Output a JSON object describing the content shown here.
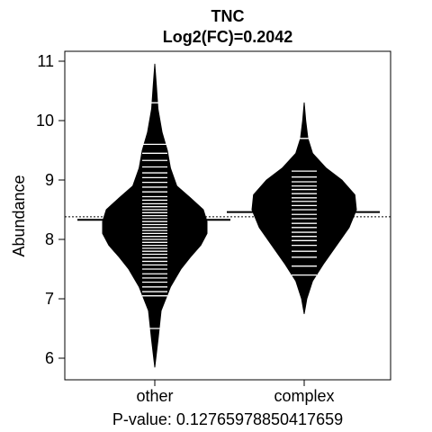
{
  "chart_data": {
    "type": "beanplot",
    "title": "TNC",
    "subtitle": "Log2(FC)=0.2042",
    "ylabel": "Abundance",
    "xlabel": "P-value: 0.12765978850417659",
    "categories": [
      "other",
      "complex"
    ],
    "ylim": [
      5.7,
      11.2
    ],
    "yticks": [
      6,
      7,
      8,
      9,
      10,
      11
    ],
    "overall_mean": 8.38,
    "grid": false,
    "legend": "none",
    "groups": [
      {
        "name": "other",
        "mean": 8.33,
        "range": [
          5.85,
          10.95
        ],
        "density": [
          [
            5.85,
            0.0
          ],
          [
            6.3,
            0.06
          ],
          [
            6.8,
            0.12
          ],
          [
            7.2,
            0.3
          ],
          [
            7.5,
            0.5
          ],
          [
            7.7,
            0.68
          ],
          [
            7.9,
            0.88
          ],
          [
            8.1,
            1.0
          ],
          [
            8.3,
            1.0
          ],
          [
            8.5,
            0.93
          ],
          [
            8.7,
            0.68
          ],
          [
            8.9,
            0.42
          ],
          [
            9.2,
            0.3
          ],
          [
            9.5,
            0.24
          ],
          [
            9.8,
            0.14
          ],
          [
            10.2,
            0.06
          ],
          [
            10.6,
            0.03
          ],
          [
            10.95,
            0.0
          ]
        ],
        "observations": [
          6.5,
          7.05,
          7.12,
          7.2,
          7.28,
          7.35,
          7.42,
          7.5,
          7.57,
          7.63,
          7.69,
          7.75,
          7.8,
          7.85,
          7.9,
          7.95,
          8.0,
          8.05,
          8.1,
          8.15,
          8.2,
          8.25,
          8.3,
          8.35,
          8.4,
          8.45,
          8.5,
          8.55,
          8.6,
          8.66,
          8.72,
          8.8,
          8.88,
          8.96,
          9.04,
          9.12,
          9.22,
          9.33,
          9.45,
          9.6,
          10.3
        ]
      },
      {
        "name": "complex",
        "mean": 8.46,
        "range": [
          6.75,
          10.3
        ],
        "density": [
          [
            6.75,
            0.0
          ],
          [
            7.0,
            0.05
          ],
          [
            7.3,
            0.16
          ],
          [
            7.6,
            0.38
          ],
          [
            7.9,
            0.62
          ],
          [
            8.2,
            0.86
          ],
          [
            8.5,
            1.0
          ],
          [
            8.75,
            0.97
          ],
          [
            9.0,
            0.72
          ],
          [
            9.2,
            0.42
          ],
          [
            9.45,
            0.16
          ],
          [
            9.7,
            0.07
          ],
          [
            10.0,
            0.03
          ],
          [
            10.3,
            0.0
          ]
        ],
        "observations": [
          7.4,
          7.55,
          7.7,
          7.8,
          7.9,
          7.98,
          8.05,
          8.12,
          8.2,
          8.27,
          8.35,
          8.42,
          8.5,
          8.57,
          8.64,
          8.7,
          8.77,
          8.84,
          8.9,
          8.97,
          9.05,
          9.15,
          9.7
        ]
      }
    ]
  }
}
